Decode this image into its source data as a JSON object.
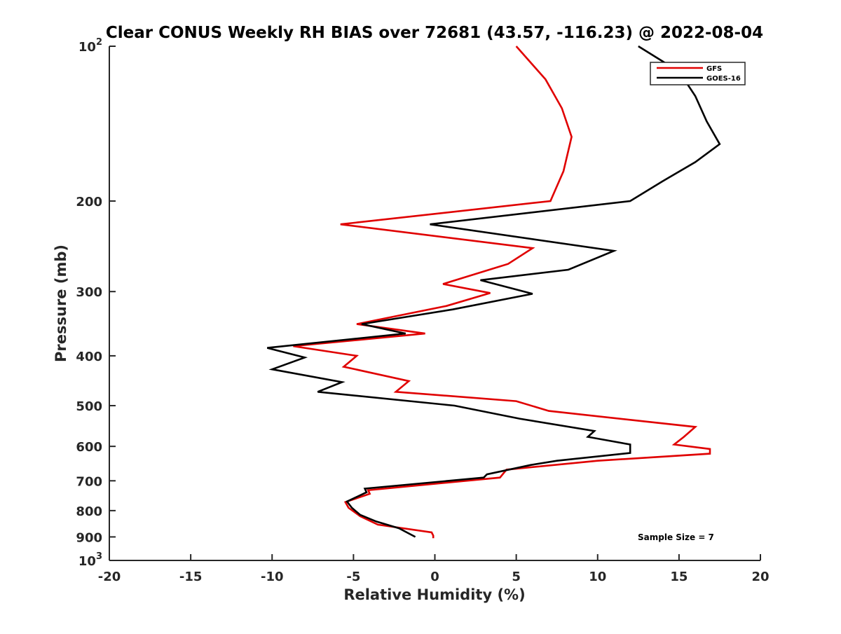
{
  "chart_data": {
    "type": "line",
    "title": "Clear CONUS Weekly RH BIAS over 72681 (43.57, -116.23) @ 2022-08-04",
    "xlabel": "Relative Humidity (%)",
    "ylabel": "Pressure (mb)",
    "xlim": [
      -20,
      20
    ],
    "ylim": [
      100,
      1000
    ],
    "y_scale": "log",
    "y_reversed": true,
    "x_ticks": [
      "-20",
      "-15",
      "-10",
      "-5",
      "0",
      "5",
      "10",
      "15",
      "20"
    ],
    "y_ticks": [
      {
        "value": 100,
        "base": "10",
        "exp": "2"
      },
      {
        "value": 200,
        "label": "200"
      },
      {
        "value": 300,
        "label": "300"
      },
      {
        "value": 400,
        "label": "400"
      },
      {
        "value": 500,
        "label": "500"
      },
      {
        "value": 600,
        "label": "600"
      },
      {
        "value": 700,
        "label": "700"
      },
      {
        "value": 800,
        "label": "800"
      },
      {
        "value": 900,
        "label": "900"
      },
      {
        "value": 1000,
        "base": "10",
        "exp": "3"
      }
    ],
    "grid": false,
    "legend_position": "top-right",
    "annotation": "Sample Size = 7",
    "series": [
      {
        "name": "GFS",
        "color": "#e00000",
        "x": [
          5.0,
          6.8,
          7.8,
          8.4,
          7.9,
          7.1,
          -5.8,
          6.0,
          4.5,
          0.5,
          3.4,
          0.7,
          -4.8,
          -0.6,
          -8.7,
          -4.8,
          -5.6,
          -1.6,
          -2.4,
          5.0,
          7.0,
          16.0,
          15.3,
          14.7,
          16.9,
          16.9,
          10.0,
          4.4,
          4.0,
          -4.1,
          -4.0,
          -5.5,
          -5.3,
          -4.6,
          -3.5,
          -0.2,
          -0.1,
          -0.1
        ],
        "y": [
          100,
          116,
          132,
          150,
          175,
          200,
          222,
          247,
          265,
          290,
          302,
          320,
          347,
          362,
          383,
          400,
          420,
          448,
          470,
          490,
          512,
          550,
          575,
          595,
          607,
          620,
          640,
          666,
          690,
          730,
          742,
          770,
          790,
          820,
          852,
          882,
          895,
          905
        ]
      },
      {
        "name": "GOES-16",
        "color": "#000000",
        "x": [
          12.5,
          15.0,
          16.0,
          16.7,
          17.5,
          16.0,
          14.0,
          12.0,
          -0.3,
          11.0,
          8.2,
          2.8,
          6.0,
          1.1,
          -4.5,
          -1.8,
          -10.3,
          -8.0,
          -10.0,
          -5.7,
          -7.2,
          1.2,
          5.2,
          9.8,
          9.4,
          12.0,
          12.0,
          7.5,
          5.9,
          3.2,
          3.0,
          -4.3,
          -4.2,
          -5.4,
          -5.1,
          -4.6,
          -3.6,
          -2.2,
          -1.2
        ],
        "y": [
          100,
          112,
          125,
          140,
          155,
          168,
          183,
          200,
          222,
          250,
          272,
          285,
          303,
          325,
          347,
          362,
          386,
          403,
          425,
          450,
          470,
          500,
          530,
          560,
          575,
          595,
          618,
          640,
          652,
          680,
          690,
          725,
          737,
          768,
          790,
          815,
          840,
          866,
          900
        ]
      }
    ]
  }
}
